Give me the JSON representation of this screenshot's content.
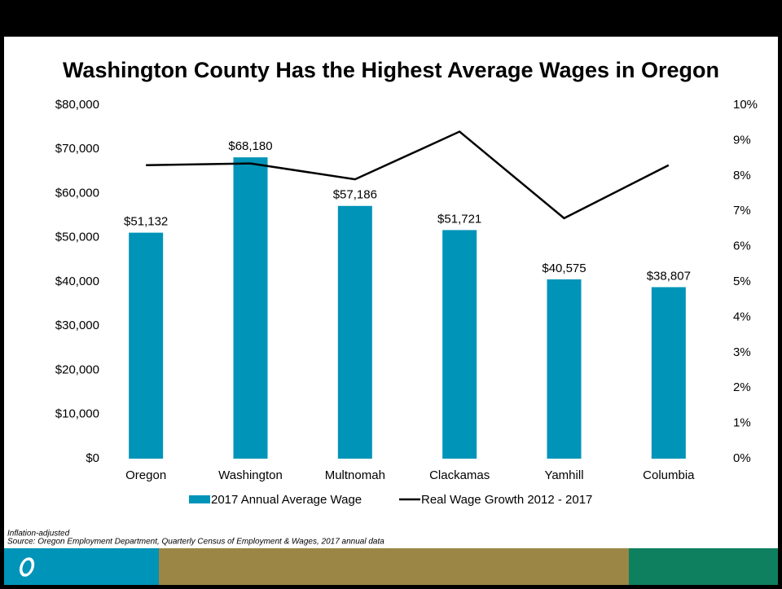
{
  "chart_data": {
    "type": "bar",
    "title": "Washington County Has the Highest Average Wages in Oregon",
    "categories": [
      "Oregon",
      "Washington",
      "Multnomah",
      "Clackamas",
      "Yamhill",
      "Columbia"
    ],
    "series": [
      {
        "name": "2017 Annual Average Wage",
        "type": "bar",
        "color": "#0094b8",
        "values": [
          51132,
          68180,
          57186,
          51721,
          40575,
          38807
        ],
        "value_labels": [
          "$51,132",
          "$68,180",
          "$57,186",
          "$51,721",
          "$40,575",
          "$38,807"
        ]
      },
      {
        "name": "Real Wage Growth 2012 - 2017",
        "type": "line",
        "axis": "y2",
        "color": "#000000",
        "values": [
          8.3,
          8.35,
          7.9,
          9.25,
          6.8,
          8.3
        ]
      }
    ],
    "ylim": [
      0,
      80000
    ],
    "yticks": [
      {
        "value": 0,
        "label": "$0"
      },
      {
        "value": 10000,
        "label": "$10,000"
      },
      {
        "value": 20000,
        "label": "$20,000"
      },
      {
        "value": 30000,
        "label": "$30,000"
      },
      {
        "value": 40000,
        "label": "$40,000"
      },
      {
        "value": 50000,
        "label": "$50,000"
      },
      {
        "value": 60000,
        "label": "$60,000"
      },
      {
        "value": 70000,
        "label": "$70,000"
      },
      {
        "value": 80000,
        "label": "$80,000"
      }
    ],
    "y2lim": [
      0,
      10
    ],
    "y2ticks": [
      {
        "value": 0,
        "label": "0%"
      },
      {
        "value": 1,
        "label": "1%"
      },
      {
        "value": 2,
        "label": "2%"
      },
      {
        "value": 3,
        "label": "3%"
      },
      {
        "value": 4,
        "label": "4%"
      },
      {
        "value": 5,
        "label": "5%"
      },
      {
        "value": 6,
        "label": "6%"
      },
      {
        "value": 7,
        "label": "7%"
      },
      {
        "value": 8,
        "label": "8%"
      },
      {
        "value": 9,
        "label": "9%"
      },
      {
        "value": 10,
        "label": "10%"
      }
    ],
    "legend": "bottom",
    "notes": [
      "Inflation-adjusted",
      "Source: Oregon Employment Department, Quarterly Census of Employment & Wages, 2017 annual data"
    ]
  }
}
